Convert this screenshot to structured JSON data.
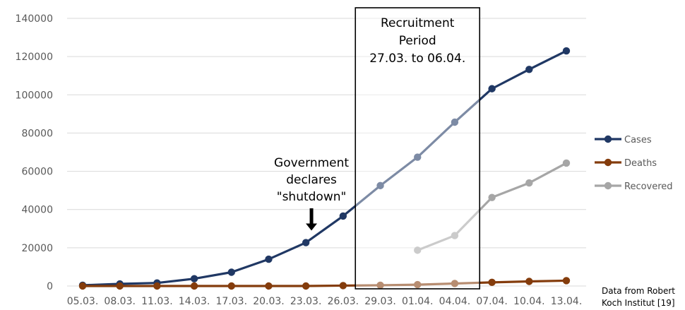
{
  "chart_data": {
    "type": "line",
    "title": "",
    "xlabel": "",
    "ylabel": "",
    "ylim": [
      0,
      140000
    ],
    "y_ticks": [
      "0",
      "20000",
      "40000",
      "60000",
      "80000",
      "100000",
      "120000",
      "140000"
    ],
    "categories": [
      "05.03.",
      "08.03.",
      "11.03.",
      "14.03.",
      "17.03.",
      "20.03.",
      "23.03.",
      "26.03.",
      "29.03.",
      "01.04.",
      "04.04.",
      "07.04.",
      "10.04.",
      "13.04."
    ],
    "grid": "horizontal",
    "legend_position": "right",
    "series": [
      {
        "name": "Cases",
        "color": "#203864",
        "values": [
          400,
          1100,
          1600,
          3800,
          7200,
          14000,
          22700,
          36600,
          52500,
          67400,
          85700,
          103200,
          113300,
          123000
        ]
      },
      {
        "name": "Deaths",
        "color": "#843c0c",
        "values": [
          0,
          0,
          0,
          0,
          0,
          0,
          0,
          200,
          400,
          700,
          1300,
          1900,
          2400,
          2800
        ]
      },
      {
        "name": "Recovered",
        "color": "#a6a6a6",
        "values": [
          null,
          null,
          null,
          null,
          null,
          null,
          null,
          null,
          null,
          18700,
          26400,
          46300,
          53900,
          64300
        ]
      }
    ],
    "annotations": {
      "recruitment": {
        "lines": [
          "Recruitment",
          "Period",
          "27.03. to 06.04."
        ],
        "from_index": 7.33,
        "to_index": 10.67
      },
      "shutdown": {
        "lines": [
          "Government",
          "declares",
          "\"shutdown\""
        ],
        "category_index": 6.15,
        "arrow_value": 29000
      },
      "source": [
        "Data from Robert",
        "Koch Institut [19]"
      ]
    }
  }
}
